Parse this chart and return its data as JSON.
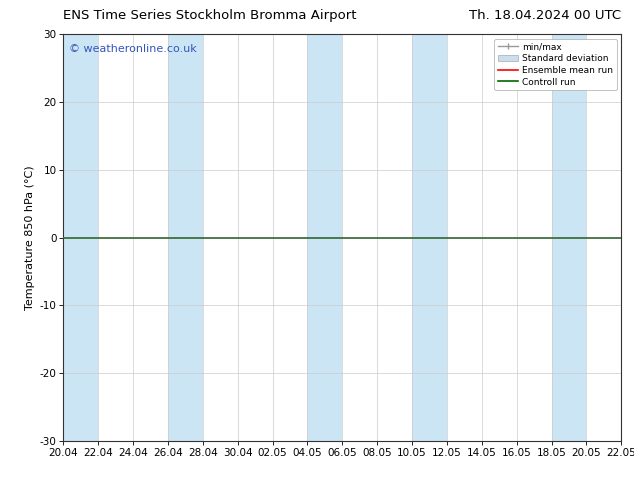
{
  "title_left": "ENS Time Series Stockholm Bromma Airport",
  "title_right": "Th. 18.04.2024 00 UTC",
  "ylabel": "Temperature 850 hPa (°C)",
  "watermark": "© weatheronline.co.uk",
  "ylim": [
    -30,
    30
  ],
  "yticks": [
    -30,
    -20,
    -10,
    0,
    10,
    20,
    30
  ],
  "xtick_labels": [
    "20.04",
    "22.04",
    "24.04",
    "26.04",
    "28.04",
    "30.04",
    "02.05",
    "04.05",
    "06.05",
    "08.05",
    "10.05",
    "12.05",
    "14.05",
    "16.05",
    "18.05",
    "20.05",
    "22.05"
  ],
  "background_color": "#ffffff",
  "plot_bg_color": "#ffffff",
  "shaded_band_color": "#cce5f5",
  "zero_line_color": "#336633",
  "zero_line_value": 0,
  "mean_line_color": "#ff0000",
  "control_line_color": "#006600",
  "legend_minmax_color": "#999999",
  "legend_stddev_color": "#ccddee",
  "watermark_color": "#3355bb",
  "title_fontsize": 9.5,
  "axis_fontsize": 8,
  "tick_fontsize": 7.5,
  "watermark_fontsize": 8,
  "shaded_intervals": [
    [
      "20.04",
      "22.04"
    ],
    [
      "26.04",
      "28.04"
    ],
    [
      "04.05",
      "06.05"
    ],
    [
      "10.05",
      "12.05"
    ],
    [
      "18.05",
      "20.05"
    ]
  ],
  "grid_color": "#cccccc",
  "grid_linewidth": 0.5
}
